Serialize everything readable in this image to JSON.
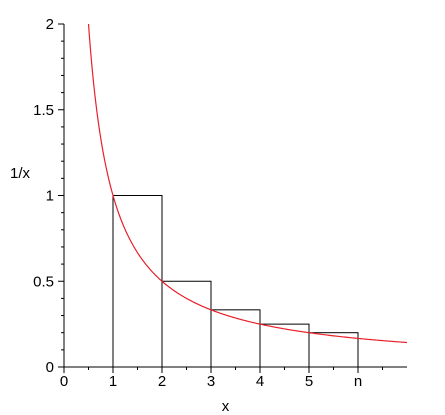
{
  "chart_data": {
    "type": "line",
    "title": "",
    "xlabel": "x",
    "ylabel": "1/x",
    "xlim": [
      0,
      7
    ],
    "ylim": [
      0,
      2
    ],
    "x_ticks": [
      {
        "value": 0,
        "label": "0"
      },
      {
        "value": 1,
        "label": "1"
      },
      {
        "value": 2,
        "label": "2"
      },
      {
        "value": 3,
        "label": "3"
      },
      {
        "value": 4,
        "label": "4"
      },
      {
        "value": 5,
        "label": "5"
      },
      {
        "value": 6,
        "label": "n"
      }
    ],
    "y_ticks": [
      {
        "value": 0,
        "label": "0"
      },
      {
        "value": 0.5,
        "label": "0.5"
      },
      {
        "value": 1,
        "label": "1"
      },
      {
        "value": 1.5,
        "label": "1.5"
      },
      {
        "value": 2,
        "label": "2"
      }
    ],
    "grid": false,
    "curve": {
      "function": "1/x",
      "color": "#e8202a",
      "x_range": [
        0.5,
        7
      ]
    },
    "bars": {
      "color": "#000000",
      "items": [
        {
          "x_start": 1,
          "x_end": 2,
          "height": 1
        },
        {
          "x_start": 2,
          "x_end": 3,
          "height": 0.5
        },
        {
          "x_start": 3,
          "x_end": 4,
          "height": 0.3333
        },
        {
          "x_start": 4,
          "x_end": 5,
          "height": 0.25
        },
        {
          "x_start": 5,
          "x_end": 6,
          "height": 0.2
        }
      ]
    }
  }
}
